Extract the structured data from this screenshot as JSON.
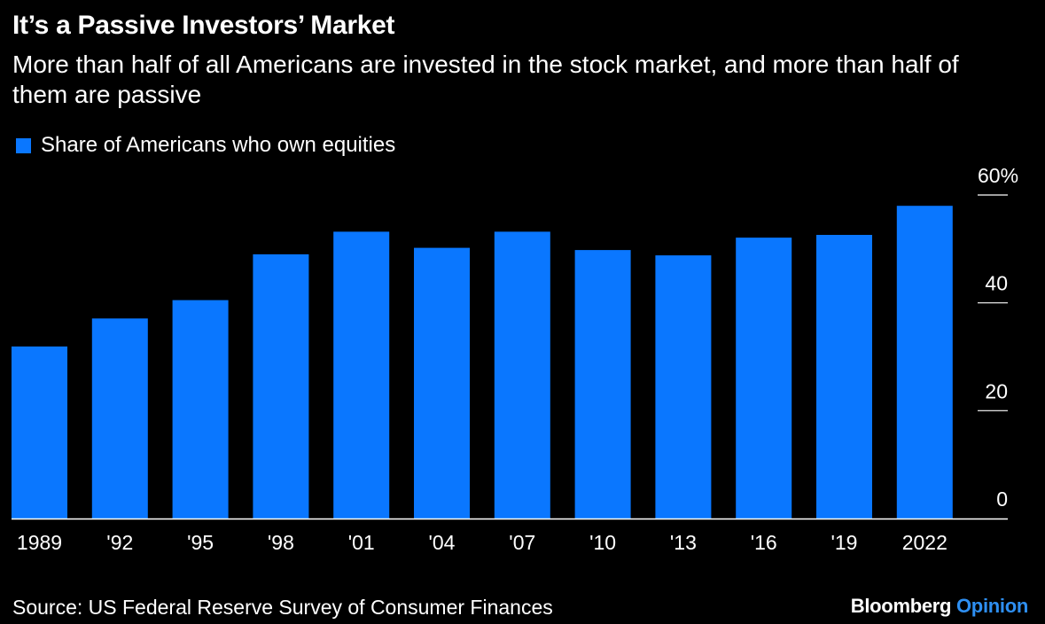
{
  "header": {
    "title": "It’s a Passive Investors’ Market",
    "subtitle": "More than half of all Americans are invested in the stock market, and more than half of them are passive"
  },
  "legend": {
    "label": "Share of Americans who own equities",
    "color": "#0a77ff"
  },
  "footer": {
    "source": "Source: US Federal Reserve Survey of Consumer Finances",
    "brand_main": "Bloomberg",
    "brand_sub": "Opinion",
    "brand_sub_color": "#2e8ff2"
  },
  "colors": {
    "background": "#000000",
    "bar": "#0a77ff",
    "text": "#ffffff",
    "axis": "#ffffff"
  },
  "chart_data": {
    "type": "bar",
    "categories": [
      "1989",
      "'92",
      "'95",
      "'98",
      "'01",
      "'04",
      "'07",
      "'10",
      "'13",
      "'16",
      "'19",
      "2022"
    ],
    "series": [
      {
        "name": "Share of Americans who own equities",
        "values": [
          31.9,
          37.1,
          40.5,
          49.0,
          53.2,
          50.2,
          53.2,
          49.8,
          48.8,
          52.1,
          52.6,
          58.0
        ]
      }
    ],
    "ylim": [
      0,
      60
    ],
    "y_ticks": [
      0,
      20,
      40,
      60
    ],
    "y_tick_labels": [
      "0",
      "20",
      "40",
      "60%"
    ],
    "y_axis_position": "right",
    "grid": false,
    "legend_position": "top-left",
    "xlabel": "",
    "ylabel": ""
  }
}
